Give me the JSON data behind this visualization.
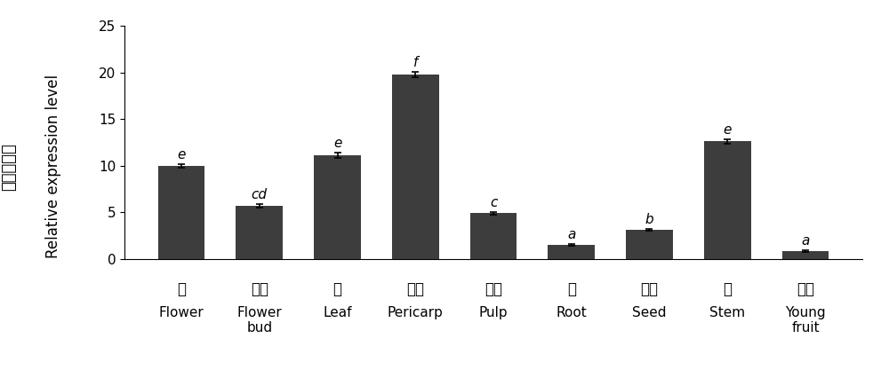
{
  "categories_cn": [
    "花",
    "花芽",
    "叶",
    "果皮",
    "果肉",
    "根",
    "种子",
    "茎",
    "幼果"
  ],
  "categories_en": [
    "Flower",
    "Flower\nbud",
    "Leaf",
    "Pericarp",
    "Pulp",
    "Root",
    "Seed",
    "Stem",
    "Young\nfruit"
  ],
  "values": [
    10.0,
    5.7,
    11.1,
    19.8,
    4.9,
    1.5,
    3.1,
    12.6,
    0.85
  ],
  "errors": [
    0.2,
    0.2,
    0.3,
    0.3,
    0.15,
    0.1,
    0.1,
    0.25,
    0.1
  ],
  "letters": [
    "e",
    "cd",
    "e",
    "f",
    "c",
    "a",
    "b",
    "e",
    "a"
  ],
  "bar_color": "#3d3d3d",
  "ylabel_cn": "相对表达量",
  "ylabel_en": "Relative expression level",
  "ylim": [
    0,
    25
  ],
  "yticks": [
    0,
    5,
    10,
    15,
    20,
    25
  ],
  "background_color": "#ffffff",
  "bar_width": 0.6,
  "letter_fontsize": 11,
  "tick_fontsize": 11,
  "ylabel_fontsize": 12,
  "cn_label_fontsize": 12,
  "en_label_fontsize": 11
}
